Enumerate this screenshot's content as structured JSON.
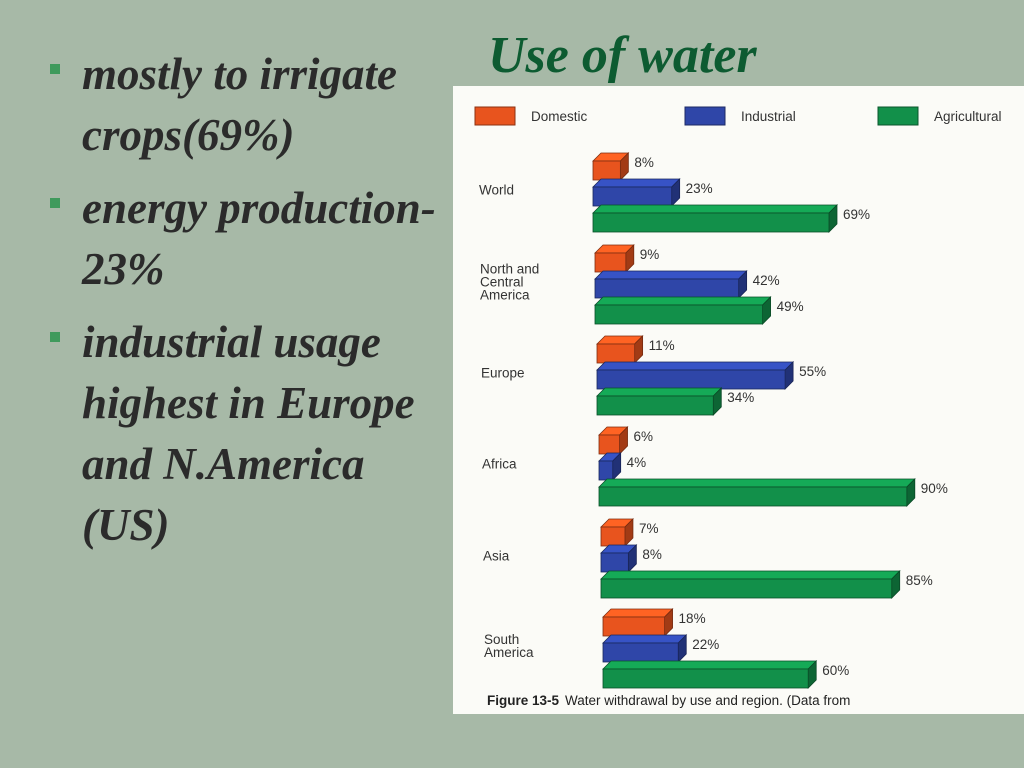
{
  "slide": {
    "title": "Use of water",
    "bullets": [
      "mostly to irrigate crops(69%)",
      "energy production-23%",
      "industrial usage highest in Europe and N.America (US)"
    ]
  },
  "colors": {
    "background": "#a7b9a7",
    "title": "#0d5b31",
    "bullet_text": "#2b2b2b",
    "bullet_marker": "#3f9a5c",
    "domestic": "#e8541e",
    "industrial": "#2f46a8",
    "agricultural": "#12904a"
  },
  "chart_data": {
    "type": "bar",
    "orientation": "horizontal",
    "style": "3d",
    "categories": [
      "World",
      "North and Central America",
      "Europe",
      "Africa",
      "Asia",
      "South America"
    ],
    "series": [
      {
        "name": "Domestic",
        "values": [
          8,
          9,
          11,
          6,
          7,
          18
        ],
        "labels": [
          "8%",
          "9%",
          "11%",
          "6%",
          "7%",
          "18%"
        ]
      },
      {
        "name": "Industrial",
        "values": [
          23,
          42,
          55,
          4,
          8,
          22
        ],
        "labels": [
          "23%",
          "42%",
          "55%",
          "4%",
          "8%",
          "22%"
        ]
      },
      {
        "name": "Agricultural",
        "values": [
          69,
          49,
          34,
          90,
          85,
          60
        ],
        "labels": [
          "69%",
          "49%",
          "34%",
          "90%",
          "85%",
          "60%"
        ]
      }
    ],
    "legend": [
      "Domestic",
      "Industrial",
      "Agricultural"
    ],
    "legend_position": "top",
    "caption_label": "Figure 13-5",
    "caption_text": "Water withdrawal by use and region. (Data from",
    "unit": "%",
    "xlim": [
      0,
      90
    ],
    "grid": false
  }
}
